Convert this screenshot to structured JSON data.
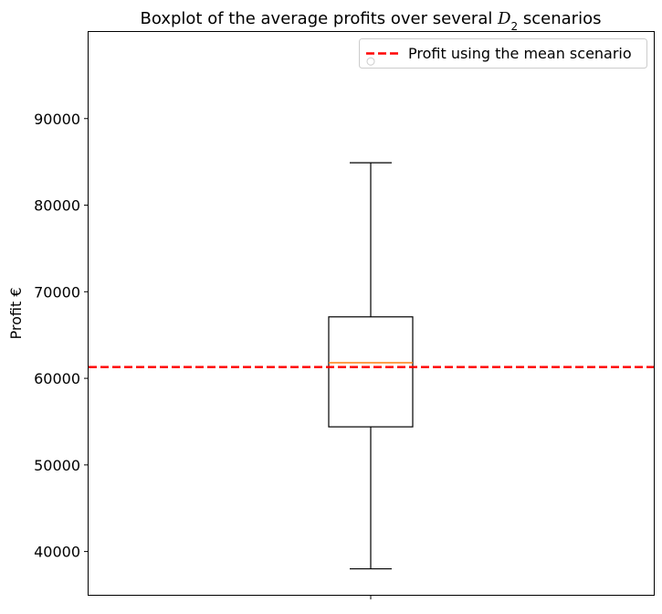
{
  "chart_data": {
    "type": "boxplot",
    "title": {
      "prefix": "Boxplot of the average profits over several ",
      "symbol": "D",
      "subscript": "2",
      "suffix": " scenarios"
    },
    "ylabel": "Profit €",
    "xlabel": "",
    "ylim": [
      35000,
      100000
    ],
    "yticks": [
      40000,
      50000,
      60000,
      70000,
      80000,
      90000
    ],
    "box": {
      "whisker_low": 38000,
      "q1": 54400,
      "median": 61800,
      "q3": 67100,
      "whisker_high": 84900,
      "outliers": [
        96600
      ]
    },
    "reference_line": {
      "label": "Profit using the mean scenario",
      "value": 61300
    },
    "legend_location": "upper-right",
    "grid": false,
    "colors": {
      "box": "#000000",
      "median": "#ff7f0e",
      "reference_line": "#ff0000",
      "outlier": "#000000"
    }
  }
}
